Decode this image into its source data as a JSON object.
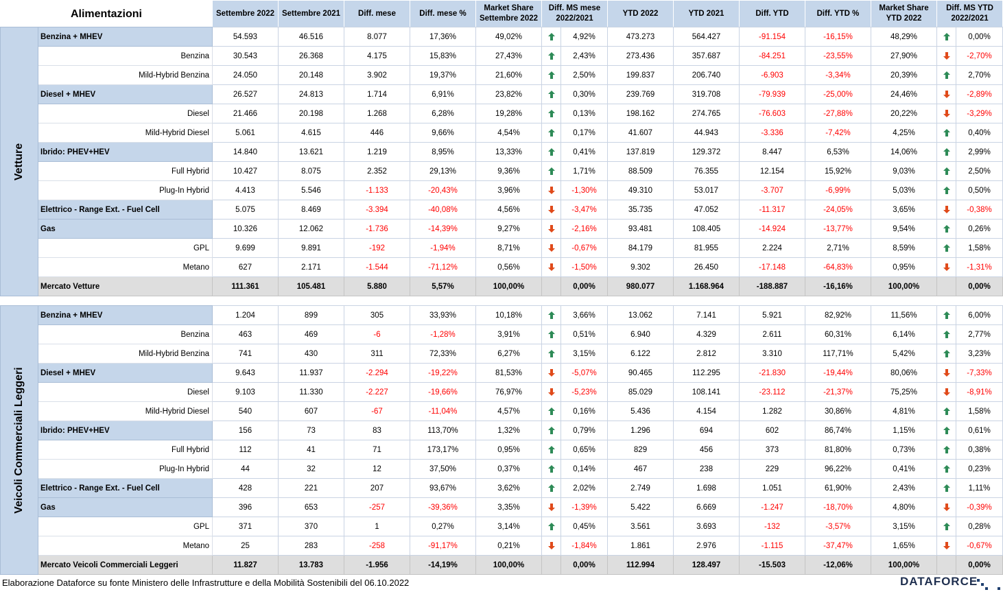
{
  "header": {
    "title": "Alimentazioni",
    "columns": [
      [
        "Settembre 2022"
      ],
      [
        "Settembre 2021"
      ],
      [
        "Diff. mese"
      ],
      [
        "Diff. mese %"
      ],
      [
        "Market Share",
        "Settembre 2022"
      ],
      [
        "Diff. MS mese",
        "2022/2021"
      ],
      [
        "YTD 2022"
      ],
      [
        "YTD 2021"
      ],
      [
        "Diff. YTD"
      ],
      [
        "Diff. YTD %"
      ],
      [
        "Market Share",
        "YTD 2022"
      ],
      [
        "Diff. MS YTD",
        "2022/2021"
      ]
    ]
  },
  "colors": {
    "header_bg": "#c5d6ea",
    "total_bg": "#dedede",
    "negative": "#ff0000",
    "arrow_up": "#2e8b57",
    "arrow_down": "#e04a1a"
  },
  "sections": [
    {
      "label": "Vetture",
      "rows": [
        {
          "type": "main",
          "label": "Benzina + MHEV",
          "v": [
            "54.593",
            "46.516",
            "8.077",
            "17,36%",
            "49,02%",
            "4,92%",
            "473.273",
            "564.427",
            "-91.154",
            "-16,15%",
            "48,29%",
            "0,00%"
          ],
          "ms_arrow": "up",
          "ytd_arrow": "up"
        },
        {
          "type": "sub",
          "label": "Benzina",
          "v": [
            "30.543",
            "26.368",
            "4.175",
            "15,83%",
            "27,43%",
            "2,43%",
            "273.436",
            "357.687",
            "-84.251",
            "-23,55%",
            "27,90%",
            "-2,70%"
          ],
          "ms_arrow": "up",
          "ytd_arrow": "down"
        },
        {
          "type": "sub",
          "label": "Mild-Hybrid Benzina",
          "v": [
            "24.050",
            "20.148",
            "3.902",
            "19,37%",
            "21,60%",
            "2,50%",
            "199.837",
            "206.740",
            "-6.903",
            "-3,34%",
            "20,39%",
            "2,70%"
          ],
          "ms_arrow": "up",
          "ytd_arrow": "up"
        },
        {
          "type": "main",
          "label": "Diesel + MHEV",
          "v": [
            "26.527",
            "24.813",
            "1.714",
            "6,91%",
            "23,82%",
            "0,30%",
            "239.769",
            "319.708",
            "-79.939",
            "-25,00%",
            "24,46%",
            "-2,89%"
          ],
          "ms_arrow": "up",
          "ytd_arrow": "down"
        },
        {
          "type": "sub",
          "label": "Diesel",
          "v": [
            "21.466",
            "20.198",
            "1.268",
            "6,28%",
            "19,28%",
            "0,13%",
            "198.162",
            "274.765",
            "-76.603",
            "-27,88%",
            "20,22%",
            "-3,29%"
          ],
          "ms_arrow": "up",
          "ytd_arrow": "down"
        },
        {
          "type": "sub",
          "label": "Mild-Hybrid Diesel",
          "v": [
            "5.061",
            "4.615",
            "446",
            "9,66%",
            "4,54%",
            "0,17%",
            "41.607",
            "44.943",
            "-3.336",
            "-7,42%",
            "4,25%",
            "0,40%"
          ],
          "ms_arrow": "up",
          "ytd_arrow": "up"
        },
        {
          "type": "main",
          "label": "Ibrido: PHEV+HEV",
          "v": [
            "14.840",
            "13.621",
            "1.219",
            "8,95%",
            "13,33%",
            "0,41%",
            "137.819",
            "129.372",
            "8.447",
            "6,53%",
            "14,06%",
            "2,99%"
          ],
          "ms_arrow": "up",
          "ytd_arrow": "up"
        },
        {
          "type": "sub",
          "label": "Full Hybrid",
          "v": [
            "10.427",
            "8.075",
            "2.352",
            "29,13%",
            "9,36%",
            "1,71%",
            "88.509",
            "76.355",
            "12.154",
            "15,92%",
            "9,03%",
            "2,50%"
          ],
          "ms_arrow": "up",
          "ytd_arrow": "up"
        },
        {
          "type": "sub",
          "label": "Plug-In Hybrid",
          "v": [
            "4.413",
            "5.546",
            "-1.133",
            "-20,43%",
            "3,96%",
            "-1,30%",
            "49.310",
            "53.017",
            "-3.707",
            "-6,99%",
            "5,03%",
            "0,50%"
          ],
          "ms_arrow": "down",
          "ytd_arrow": "up"
        },
        {
          "type": "main",
          "label": "Elettrico - Range Ext. - Fuel Cell",
          "v": [
            "5.075",
            "8.469",
            "-3.394",
            "-40,08%",
            "4,56%",
            "-3,47%",
            "35.735",
            "47.052",
            "-11.317",
            "-24,05%",
            "3,65%",
            "-0,38%"
          ],
          "ms_arrow": "down",
          "ytd_arrow": "down"
        },
        {
          "type": "main",
          "label": "Gas",
          "v": [
            "10.326",
            "12.062",
            "-1.736",
            "-14,39%",
            "9,27%",
            "-2,16%",
            "93.481",
            "108.405",
            "-14.924",
            "-13,77%",
            "9,54%",
            "0,26%"
          ],
          "ms_arrow": "down",
          "ytd_arrow": "up"
        },
        {
          "type": "sub",
          "label": "GPL",
          "v": [
            "9.699",
            "9.891",
            "-192",
            "-1,94%",
            "8,71%",
            "-0,67%",
            "84.179",
            "81.955",
            "2.224",
            "2,71%",
            "8,59%",
            "1,58%"
          ],
          "ms_arrow": "down",
          "ytd_arrow": "up"
        },
        {
          "type": "sub",
          "label": "Metano",
          "v": [
            "627",
            "2.171",
            "-1.544",
            "-71,12%",
            "0,56%",
            "-1,50%",
            "9.302",
            "26.450",
            "-17.148",
            "-64,83%",
            "0,95%",
            "-1,31%"
          ],
          "ms_arrow": "down",
          "ytd_arrow": "down"
        },
        {
          "type": "total",
          "label": "Mercato Vetture",
          "v": [
            "111.361",
            "105.481",
            "5.880",
            "5,57%",
            "100,00%",
            "0,00%",
            "980.077",
            "1.168.964",
            "-188.887",
            "-16,16%",
            "100,00%",
            "0,00%"
          ],
          "ms_arrow": "",
          "ytd_arrow": ""
        }
      ]
    },
    {
      "label": "Veicoli Commerciali Leggeri",
      "rows": [
        {
          "type": "main",
          "label": "Benzina + MHEV",
          "v": [
            "1.204",
            "899",
            "305",
            "33,93%",
            "10,18%",
            "3,66%",
            "13.062",
            "7.141",
            "5.921",
            "82,92%",
            "11,56%",
            "6,00%"
          ],
          "ms_arrow": "up",
          "ytd_arrow": "up"
        },
        {
          "type": "sub",
          "label": "Benzina",
          "v": [
            "463",
            "469",
            "-6",
            "-1,28%",
            "3,91%",
            "0,51%",
            "6.940",
            "4.329",
            "2.611",
            "60,31%",
            "6,14%",
            "2,77%"
          ],
          "ms_arrow": "up",
          "ytd_arrow": "up"
        },
        {
          "type": "sub",
          "label": "Mild-Hybrid Benzina",
          "v": [
            "741",
            "430",
            "311",
            "72,33%",
            "6,27%",
            "3,15%",
            "6.122",
            "2.812",
            "3.310",
            "117,71%",
            "5,42%",
            "3,23%"
          ],
          "ms_arrow": "up",
          "ytd_arrow": "up"
        },
        {
          "type": "main",
          "label": "Diesel + MHEV",
          "v": [
            "9.643",
            "11.937",
            "-2.294",
            "-19,22%",
            "81,53%",
            "-5,07%",
            "90.465",
            "112.295",
            "-21.830",
            "-19,44%",
            "80,06%",
            "-7,33%"
          ],
          "ms_arrow": "down",
          "ytd_arrow": "down"
        },
        {
          "type": "sub",
          "label": "Diesel",
          "v": [
            "9.103",
            "11.330",
            "-2.227",
            "-19,66%",
            "76,97%",
            "-5,23%",
            "85.029",
            "108.141",
            "-23.112",
            "-21,37%",
            "75,25%",
            "-8,91%"
          ],
          "ms_arrow": "down",
          "ytd_arrow": "down"
        },
        {
          "type": "sub",
          "label": "Mild-Hybrid Diesel",
          "v": [
            "540",
            "607",
            "-67",
            "-11,04%",
            "4,57%",
            "0,16%",
            "5.436",
            "4.154",
            "1.282",
            "30,86%",
            "4,81%",
            "1,58%"
          ],
          "ms_arrow": "up",
          "ytd_arrow": "up"
        },
        {
          "type": "main",
          "label": "Ibrido: PHEV+HEV",
          "v": [
            "156",
            "73",
            "83",
            "113,70%",
            "1,32%",
            "0,79%",
            "1.296",
            "694",
            "602",
            "86,74%",
            "1,15%",
            "0,61%"
          ],
          "ms_arrow": "up",
          "ytd_arrow": "up"
        },
        {
          "type": "sub",
          "label": "Full Hybrid",
          "v": [
            "112",
            "41",
            "71",
            "173,17%",
            "0,95%",
            "0,65%",
            "829",
            "456",
            "373",
            "81,80%",
            "0,73%",
            "0,38%"
          ],
          "ms_arrow": "up",
          "ytd_arrow": "up"
        },
        {
          "type": "sub",
          "label": "Plug-In Hybrid",
          "v": [
            "44",
            "32",
            "12",
            "37,50%",
            "0,37%",
            "0,14%",
            "467",
            "238",
            "229",
            "96,22%",
            "0,41%",
            "0,23%"
          ],
          "ms_arrow": "up",
          "ytd_arrow": "up"
        },
        {
          "type": "main",
          "label": "Elettrico - Range Ext. - Fuel Cell",
          "v": [
            "428",
            "221",
            "207",
            "93,67%",
            "3,62%",
            "2,02%",
            "2.749",
            "1.698",
            "1.051",
            "61,90%",
            "2,43%",
            "1,11%"
          ],
          "ms_arrow": "up",
          "ytd_arrow": "up"
        },
        {
          "type": "main",
          "label": "Gas",
          "v": [
            "396",
            "653",
            "-257",
            "-39,36%",
            "3,35%",
            "-1,39%",
            "5.422",
            "6.669",
            "-1.247",
            "-18,70%",
            "4,80%",
            "-0,39%"
          ],
          "ms_arrow": "down",
          "ytd_arrow": "down"
        },
        {
          "type": "sub",
          "label": "GPL",
          "v": [
            "371",
            "370",
            "1",
            "0,27%",
            "3,14%",
            "0,45%",
            "3.561",
            "3.693",
            "-132",
            "-3,57%",
            "3,15%",
            "0,28%"
          ],
          "ms_arrow": "up",
          "ytd_arrow": "up"
        },
        {
          "type": "sub",
          "label": "Metano",
          "v": [
            "25",
            "283",
            "-258",
            "-91,17%",
            "0,21%",
            "-1,84%",
            "1.861",
            "2.976",
            "-1.115",
            "-37,47%",
            "1,65%",
            "-0,67%"
          ],
          "ms_arrow": "down",
          "ytd_arrow": "down"
        },
        {
          "type": "total",
          "label": "Mercato Veicoli Commerciali Leggeri",
          "v": [
            "11.827",
            "13.783",
            "-1.956",
            "-14,19%",
            "100,00%",
            "0,00%",
            "112.994",
            "128.497",
            "-15.503",
            "-12,06%",
            "100,00%",
            "0,00%"
          ],
          "ms_arrow": "",
          "ytd_arrow": ""
        }
      ]
    }
  ],
  "footer": {
    "source": "Elaborazione Dataforce su fonte Ministero delle Infrastrutture e della Mobilità Sostenibili del 06.10.2022",
    "logo": "DATAFORCE"
  }
}
